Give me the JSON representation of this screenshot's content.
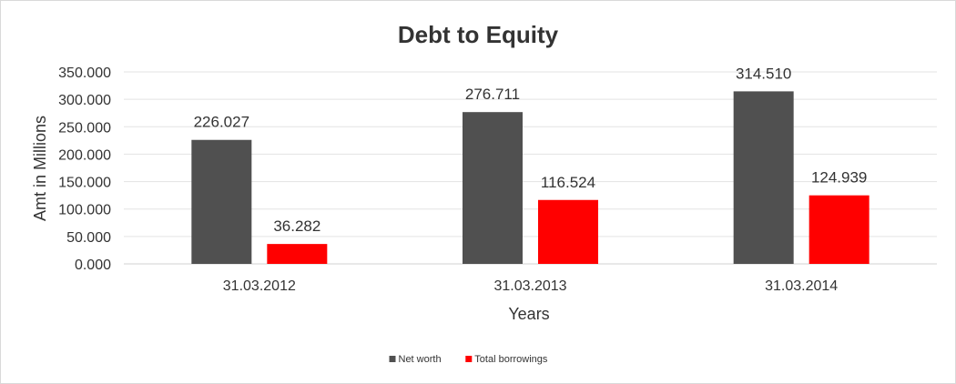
{
  "chart_data": {
    "type": "bar",
    "title": "Debt to Equity",
    "xlabel": "Years",
    "ylabel": "Amt in Millions",
    "categories": [
      "31.03.2012",
      "31.03.2013",
      "31.03.2014"
    ],
    "series": [
      {
        "name": "Net worth",
        "values": [
          226.027,
          276.711,
          314.51
        ],
        "labels": [
          "226.027",
          "276.711",
          "314.510"
        ],
        "color": "#505050"
      },
      {
        "name": "Total borrowings",
        "values": [
          36.282,
          116.524,
          124.939
        ],
        "labels": [
          "36.282",
          "116.524",
          "124.939"
        ],
        "color": "#ff0000"
      }
    ],
    "ylim": [
      0,
      350
    ],
    "yticks": [
      "0.000",
      "50.000",
      "100.000",
      "150.000",
      "200.000",
      "250.000",
      "300.000",
      "350.000"
    ],
    "grid": true,
    "legend": "bottom"
  }
}
